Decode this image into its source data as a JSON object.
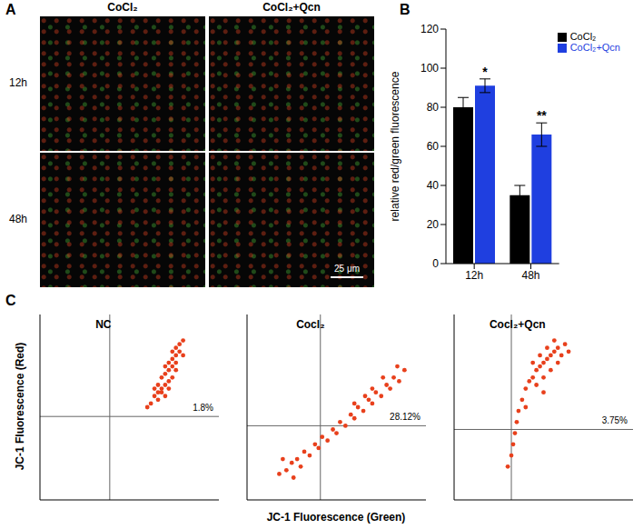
{
  "chart_data": [
    {
      "type": "image",
      "panel": "A",
      "columns": [
        "CoCl₂",
        "CoCl₂+Qcn"
      ],
      "rows": [
        "12h",
        "48h"
      ],
      "scale_bar": "25 μm"
    },
    {
      "type": "bar",
      "panel": "B",
      "categories": [
        "12h",
        "48h"
      ],
      "series": [
        {
          "name": "CoCl₂",
          "color": "#000000",
          "values": [
            80,
            35
          ],
          "errors": [
            5,
            5
          ]
        },
        {
          "name": "CoCl₂+Qcn",
          "color": "#1f3fe0",
          "values": [
            91,
            66
          ],
          "errors": [
            3.5,
            6
          ],
          "significance": [
            "*",
            "**"
          ]
        }
      ],
      "y_label": "relative red/green fluorescence",
      "ylim": [
        0,
        120
      ],
      "yticks": [
        0,
        20,
        40,
        60,
        80,
        100,
        120
      ],
      "legend": "upper right"
    },
    {
      "type": "scatter",
      "panel": "C",
      "x_label": "JC-1 Fluorescence (Green)",
      "y_label": "JC-1 Fluorescence (Red)",
      "xlim": [
        0,
        100
      ],
      "ylim": [
        0,
        100
      ],
      "tick_labels": false,
      "color": "#e8401c",
      "plots": [
        {
          "title": "NC",
          "gate": [
            39,
            45
          ],
          "percent": {
            "value": 1.8,
            "label": "1.8%"
          },
          "x": [
            62,
            64,
            66,
            68,
            70,
            72,
            74,
            66,
            68,
            70,
            72,
            74,
            76,
            70,
            72,
            74,
            76,
            78,
            74,
            76,
            78,
            80,
            68,
            72,
            76,
            64,
            80,
            66,
            60,
            70
          ],
          "y": [
            52,
            56,
            58,
            60,
            62,
            64,
            66,
            62,
            66,
            68,
            70,
            72,
            74,
            72,
            74,
            76,
            78,
            80,
            80,
            82,
            84,
            86,
            58,
            60,
            70,
            60,
            78,
            54,
            50,
            56
          ]
        },
        {
          "title": "Cocl₂",
          "gate": [
            41,
            40
          ],
          "percent": {
            "value": 28.12,
            "label": "28.12%"
          },
          "x": [
            18,
            22,
            25,
            28,
            30,
            32,
            35,
            38,
            40,
            42,
            45,
            48,
            50,
            52,
            55,
            58,
            60,
            62,
            65,
            68,
            70,
            72,
            75,
            78,
            80,
            82,
            85,
            88,
            76,
            70,
            66,
            60,
            84,
            20,
            26
          ],
          "y": [
            14,
            16,
            20,
            22,
            18,
            26,
            24,
            30,
            28,
            34,
            32,
            38,
            36,
            42,
            40,
            46,
            44,
            50,
            48,
            54,
            52,
            58,
            56,
            62,
            60,
            66,
            64,
            70,
            66,
            60,
            56,
            52,
            72,
            22,
            12
          ]
        },
        {
          "title": "Cocl₂+Qcn",
          "gate": [
            32,
            38
          ],
          "percent": {
            "value": 3.75,
            "label": "3.75%"
          },
          "x": [
            40,
            42,
            44,
            46,
            48,
            50,
            52,
            54,
            56,
            58,
            46,
            50,
            54,
            58,
            60,
            62,
            44,
            48,
            52,
            56,
            50,
            38,
            36,
            35,
            34,
            33,
            32,
            30,
            40,
            64
          ],
          "y": [
            60,
            64,
            66,
            70,
            72,
            74,
            76,
            78,
            80,
            82,
            62,
            66,
            70,
            74,
            78,
            84,
            74,
            78,
            82,
            86,
            58,
            54,
            48,
            42,
            36,
            30,
            24,
            18,
            50,
            80
          ]
        }
      ]
    }
  ]
}
